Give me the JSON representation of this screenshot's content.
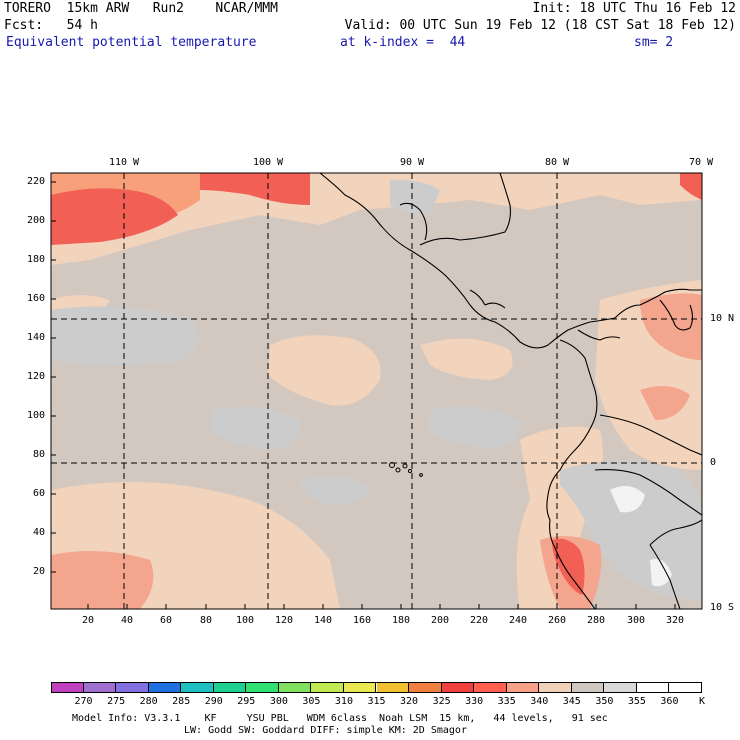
{
  "header": {
    "line1_left": "TORERO  15km ARW   Run2    NCAR/MMM",
    "line1_right": "Init: 18 UTC Thu 16 Feb 12",
    "line2_left": "Fcst:   54 h",
    "line2_right": "Valid: 00 UTC Sun 19 Feb 12 (18 CST Sat 18 Feb 12)",
    "field_name": "Equivalent potential temperature",
    "level": "at k-index =  44",
    "smoothing": "sm= 2"
  },
  "axes": {
    "x_ticks": [
      "20",
      "40",
      "60",
      "80",
      "100",
      "120",
      "140",
      "160",
      "180",
      "200",
      "220",
      "240",
      "260",
      "280",
      "300",
      "320"
    ],
    "y_ticks": [
      "20",
      "40",
      "60",
      "80",
      "100",
      "120",
      "140",
      "160",
      "180",
      "200",
      "220"
    ],
    "lon_labels": [
      "110 W",
      "100 W",
      "90 W",
      "80 W",
      "70 W"
    ],
    "lat_labels": [
      "10 N",
      "0",
      "10 S"
    ]
  },
  "colorbar": {
    "labels": [
      "270",
      "275",
      "280",
      "285",
      "290",
      "295",
      "300",
      "305",
      "310",
      "315",
      "320",
      "325",
      "330",
      "335",
      "340",
      "345",
      "350",
      "355",
      "360"
    ],
    "unit": "K",
    "colors": [
      "#c040c0",
      "#a070d0",
      "#8070e0",
      "#2070e0",
      "#20c0c0",
      "#20d090",
      "#30e070",
      "#80e060",
      "#c0e850",
      "#e8e850",
      "#f0c030",
      "#f08040",
      "#f04040",
      "#ff6050",
      "#f8a088",
      "#f0d0b8",
      "#d0c8c0",
      "#d8d8d8",
      "#ffffff",
      "#ffffff"
    ]
  },
  "footer": {
    "line1": "Model Info: V3.3.1    KF     YSU PBL   WDM 6class  Noah LSM  15 km,   44 levels,   91 sec",
    "line2": "LW: Godd SW: Goddard DIFF: simple KM: 2D Smagor"
  },
  "map": {
    "field_colors": {
      "base": "#d3c8c0",
      "grey": "#cccccc",
      "light": "#f2d3bc",
      "salmon": "#f4a58e",
      "red": "#f25f55",
      "orange": "#f7a07a",
      "white": "#f3f3f3"
    }
  }
}
